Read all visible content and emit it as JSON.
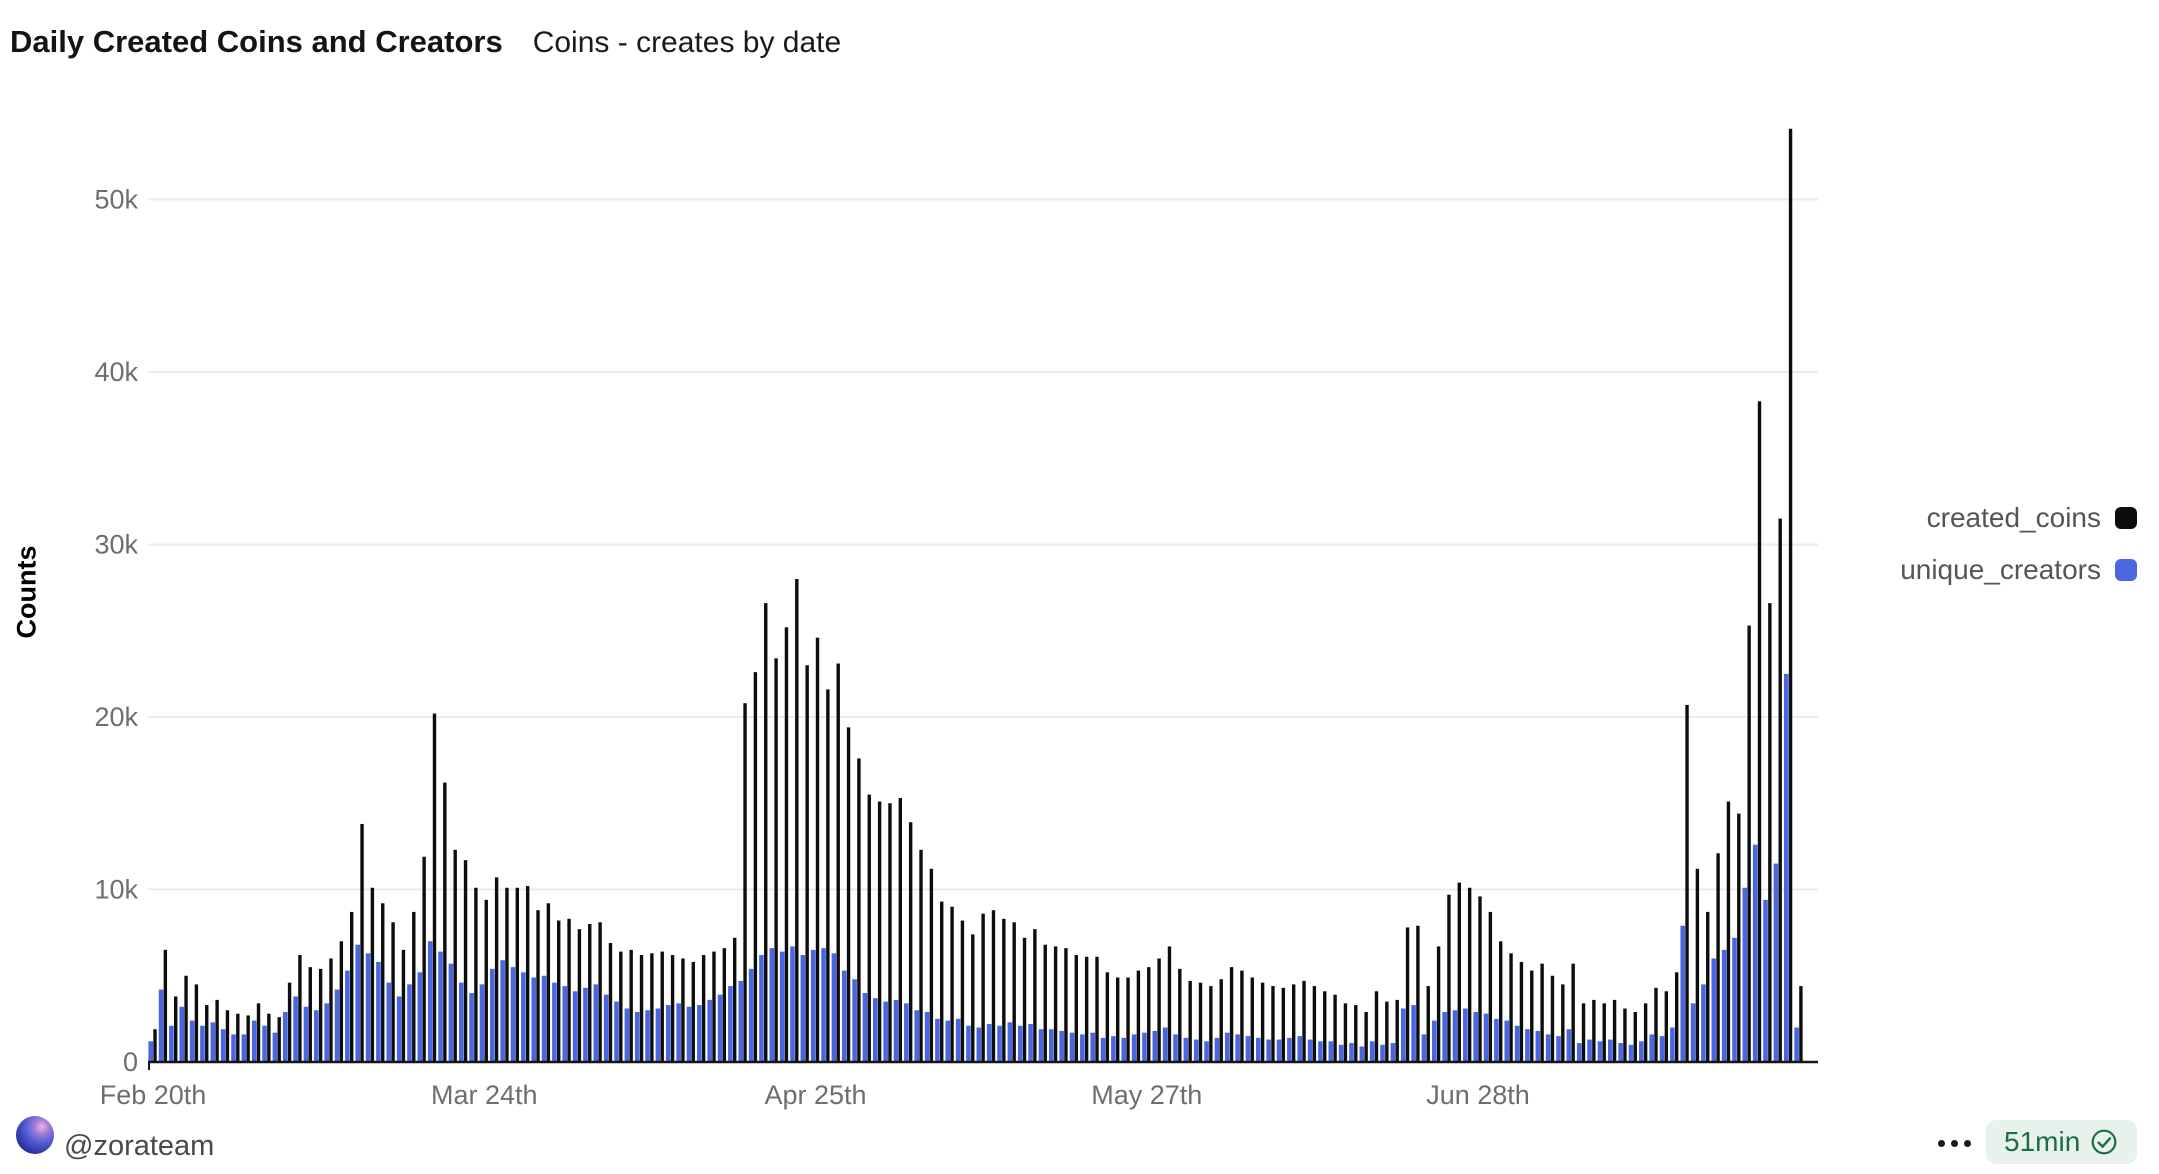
{
  "header": {
    "title": "Daily Created Coins and Creators",
    "subtitle": "Coins - creates by date"
  },
  "colors": {
    "series_black": "#0d0d0d",
    "series_blue": "#4a66e0",
    "grid": "#ebebeb",
    "axis_line": "#161616",
    "tick_text": "#6e6e6e",
    "badge_bg": "#e8f2ec",
    "badge_text": "#1f6b44"
  },
  "chart_data": {
    "type": "bar",
    "title": "Daily Created Coins and Creators",
    "subtitle": "Coins - creates by date",
    "xlabel": "",
    "ylabel": "Counts",
    "ylim": [
      0,
      55000
    ],
    "grid": "horizontal",
    "legend_position": "right",
    "x_axis_type": "daily dates (one bar pair per day, Feb 20 through end of July)",
    "y_ticks": [
      {
        "label": "0",
        "value": 0
      },
      {
        "label": "10k",
        "value": 10000
      },
      {
        "label": "20k",
        "value": 20000
      },
      {
        "label": "30k",
        "value": 30000
      },
      {
        "label": "40k",
        "value": 40000
      },
      {
        "label": "50k",
        "value": 50000
      }
    ],
    "x_ticks": [
      {
        "label": "Feb 20th",
        "day_index": 0
      },
      {
        "label": "Mar 24th",
        "day_index": 32
      },
      {
        "label": "Apr 25th",
        "day_index": 64
      },
      {
        "label": "May 27th",
        "day_index": 96
      },
      {
        "label": "Jun 28th",
        "day_index": 128
      }
    ],
    "series": [
      {
        "name": "created_coins",
        "color": "#0d0d0d",
        "values": [
          1900,
          6500,
          3800,
          5000,
          4500,
          3300,
          3600,
          3000,
          2800,
          2700,
          3400,
          2800,
          2600,
          4600,
          6200,
          5500,
          5400,
          6000,
          7000,
          8700,
          13800,
          10100,
          9200,
          8100,
          6500,
          8700,
          11900,
          20200,
          16200,
          12300,
          11700,
          10100,
          9400,
          10700,
          10100,
          10100,
          10200,
          8800,
          9200,
          8200,
          8300,
          7700,
          8000,
          8100,
          6900,
          6400,
          6500,
          6200,
          6300,
          6400,
          6200,
          6000,
          5800,
          6200,
          6400,
          6600,
          7200,
          20800,
          22600,
          26600,
          23400,
          25200,
          28000,
          23000,
          24600,
          21600,
          23100,
          19400,
          17600,
          15500,
          15100,
          15000,
          15300,
          13900,
          12300,
          11200,
          9300,
          9000,
          8200,
          7400,
          8600,
          8800,
          8300,
          8100,
          7200,
          7700,
          6800,
          6700,
          6600,
          6200,
          6100,
          6100,
          5200,
          4900,
          4900,
          5300,
          5500,
          6000,
          6700,
          5400,
          4700,
          4600,
          4400,
          4800,
          5500,
          5300,
          4900,
          4600,
          4400,
          4300,
          4500,
          4700,
          4400,
          4100,
          3900,
          3400,
          3300,
          2900,
          4100,
          3500,
          3600,
          7800,
          7900,
          4400,
          6700,
          9700,
          10400,
          10100,
          9600,
          8700,
          7000,
          6300,
          5800,
          5300,
          5700,
          5000,
          4500,
          5700,
          3400,
          3600,
          3400,
          3600,
          3100,
          2900,
          3400,
          4300,
          4100,
          5200,
          20700,
          11200,
          8700,
          12100,
          15100,
          14400,
          25300,
          38300,
          26600,
          31500,
          54100,
          4400
        ]
      },
      {
        "name": "unique_creators",
        "color": "#4a66e0",
        "values": [
          1200,
          4200,
          2100,
          3200,
          2400,
          2100,
          2300,
          1900,
          1600,
          1600,
          2400,
          2100,
          1700,
          2900,
          3800,
          3200,
          3000,
          3400,
          4200,
          5300,
          6800,
          6300,
          5800,
          4600,
          3800,
          4500,
          5200,
          7000,
          6400,
          5700,
          4600,
          4000,
          4500,
          5400,
          5900,
          5500,
          5200,
          4900,
          5000,
          4600,
          4400,
          4100,
          4300,
          4500,
          3900,
          3500,
          3100,
          2900,
          3000,
          3100,
          3300,
          3400,
          3200,
          3300,
          3600,
          3900,
          4400,
          4700,
          5400,
          6200,
          6600,
          6400,
          6700,
          6200,
          6500,
          6600,
          6300,
          5300,
          4800,
          4000,
          3700,
          3500,
          3600,
          3400,
          3000,
          2900,
          2500,
          2400,
          2500,
          2100,
          2000,
          2200,
          2100,
          2300,
          2100,
          2200,
          1900,
          1900,
          1800,
          1700,
          1600,
          1700,
          1400,
          1500,
          1400,
          1600,
          1700,
          1800,
          2000,
          1600,
          1400,
          1300,
          1200,
          1400,
          1700,
          1600,
          1500,
          1400,
          1300,
          1300,
          1400,
          1500,
          1300,
          1200,
          1200,
          1000,
          1100,
          900,
          1200,
          1000,
          1100,
          3100,
          3300,
          1600,
          2400,
          2900,
          3000,
          3100,
          2900,
          2800,
          2500,
          2400,
          2100,
          1900,
          1800,
          1600,
          1500,
          1900,
          1100,
          1300,
          1200,
          1300,
          1100,
          1000,
          1200,
          1600,
          1500,
          2000,
          7900,
          3400,
          4500,
          6000,
          6500,
          7200,
          10100,
          12600,
          9400,
          11500,
          22500,
          2000
        ]
      }
    ]
  },
  "legend": {
    "items": [
      {
        "label": "created_coins",
        "color": "#0d0d0d"
      },
      {
        "label": "unique_creators",
        "color": "#4a66e0"
      }
    ]
  },
  "footer": {
    "author_handle": "@zorateam",
    "refresh": {
      "label": "51min"
    },
    "icons": {
      "avatar": "zora-orb-sphere",
      "menu": "horizontal-ellipsis",
      "refresh_status": "seal-check"
    }
  }
}
